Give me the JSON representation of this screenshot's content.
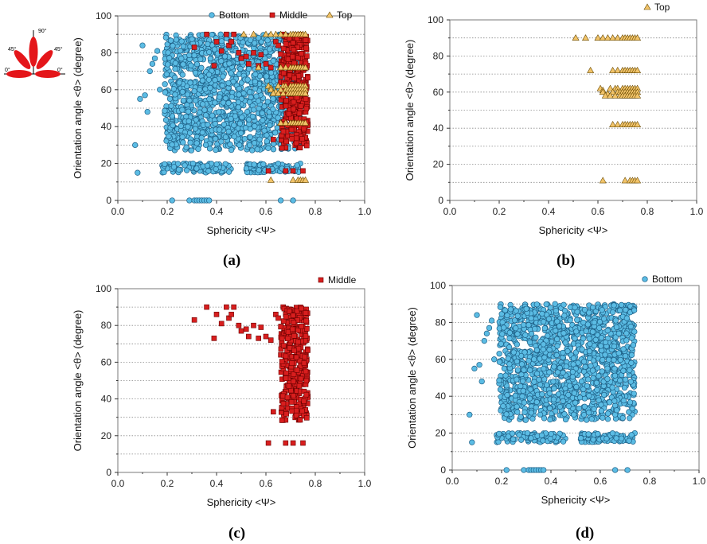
{
  "chart_data": [
    {
      "panel_label": "(a)",
      "type": "scatter",
      "xlabel": "Sphericity <Ψ>",
      "ylabel": "Orientation angle <θ> (degree)",
      "xlim": [
        0.0,
        1.0
      ],
      "ylim": [
        0,
        100
      ],
      "xticks": [
        "0.0",
        "0.2",
        "0.4",
        "0.6",
        "0.8",
        "1.0"
      ],
      "yticks": [
        "0",
        "20",
        "40",
        "60",
        "80",
        "100"
      ],
      "grid": "horizontal dotted",
      "legend_position": "top",
      "series": [
        {
          "name": "Bottom",
          "marker": "circle",
          "color": "#5bbce4"
        },
        {
          "name": "Middle",
          "marker": "square",
          "color": "#d81e1e"
        },
        {
          "name": "Top",
          "marker": "triangle",
          "color": "#f2c46a"
        }
      ],
      "inset": {
        "angle_labels": [
          "90°",
          "45°",
          "45°",
          "0°",
          "0°"
        ]
      }
    },
    {
      "panel_label": "(b)",
      "type": "scatter",
      "xlabel": "Sphericity <Ψ>",
      "ylabel": "Orientation angle <θ> (degree)",
      "xlim": [
        0.0,
        1.0
      ],
      "ylim": [
        0,
        100
      ],
      "xticks": [
        "0.0",
        "0.2",
        "0.4",
        "0.6",
        "0.8",
        "1.0"
      ],
      "yticks": [
        "0",
        "20",
        "40",
        "60",
        "80",
        "100"
      ],
      "grid": "horizontal dotted",
      "legend_position": "top-right",
      "series": [
        {
          "name": "Top",
          "marker": "triangle",
          "color": "#f2c46a",
          "points": [
            [
              0.51,
              90
            ],
            [
              0.55,
              90
            ],
            [
              0.6,
              90
            ],
            [
              0.62,
              90
            ],
            [
              0.64,
              90
            ],
            [
              0.66,
              90
            ],
            [
              0.68,
              90
            ],
            [
              0.7,
              90
            ],
            [
              0.71,
              90
            ],
            [
              0.72,
              90
            ],
            [
              0.73,
              90
            ],
            [
              0.74,
              90
            ],
            [
              0.75,
              90
            ],
            [
              0.76,
              90
            ],
            [
              0.57,
              72
            ],
            [
              0.66,
              72
            ],
            [
              0.68,
              72
            ],
            [
              0.7,
              72
            ],
            [
              0.71,
              72
            ],
            [
              0.72,
              72
            ],
            [
              0.73,
              72
            ],
            [
              0.74,
              72
            ],
            [
              0.75,
              72
            ],
            [
              0.76,
              72
            ],
            [
              0.61,
              62
            ],
            [
              0.62,
              61
            ],
            [
              0.65,
              62
            ],
            [
              0.67,
              62
            ],
            [
              0.68,
              62
            ],
            [
              0.7,
              62
            ],
            [
              0.71,
              62
            ],
            [
              0.72,
              62
            ],
            [
              0.73,
              62
            ],
            [
              0.74,
              62
            ],
            [
              0.75,
              62
            ],
            [
              0.76,
              62
            ],
            [
              0.62,
              60
            ],
            [
              0.64,
              59
            ],
            [
              0.66,
              60
            ],
            [
              0.68,
              60
            ],
            [
              0.69,
              60
            ],
            [
              0.7,
              60
            ],
            [
              0.71,
              60
            ],
            [
              0.72,
              60
            ],
            [
              0.73,
              60
            ],
            [
              0.74,
              60
            ],
            [
              0.75,
              60
            ],
            [
              0.76,
              60
            ],
            [
              0.63,
              58
            ],
            [
              0.65,
              58
            ],
            [
              0.67,
              58
            ],
            [
              0.69,
              58
            ],
            [
              0.7,
              58
            ],
            [
              0.71,
              58
            ],
            [
              0.72,
              58
            ],
            [
              0.73,
              58
            ],
            [
              0.74,
              58
            ],
            [
              0.75,
              58
            ],
            [
              0.76,
              58
            ],
            [
              0.66,
              42
            ],
            [
              0.68,
              42
            ],
            [
              0.7,
              42
            ],
            [
              0.71,
              42
            ],
            [
              0.72,
              42
            ],
            [
              0.73,
              42
            ],
            [
              0.74,
              42
            ],
            [
              0.75,
              42
            ],
            [
              0.76,
              42
            ],
            [
              0.62,
              11
            ],
            [
              0.71,
              11
            ],
            [
              0.73,
              11
            ],
            [
              0.74,
              11
            ],
            [
              0.75,
              11
            ],
            [
              0.76,
              11
            ]
          ]
        }
      ]
    },
    {
      "panel_label": "(c)",
      "type": "scatter",
      "xlabel": "Sphericity <Ψ>",
      "ylabel": "Orientation angle <θ> (degree)",
      "xlim": [
        0.0,
        1.0
      ],
      "ylim": [
        0,
        100
      ],
      "xticks": [
        "0.0",
        "0.2",
        "0.4",
        "0.6",
        "0.8",
        "1.0"
      ],
      "yticks": [
        "0",
        "20",
        "40",
        "60",
        "80",
        "100"
      ],
      "grid": "horizontal dotted",
      "legend_position": "top-right",
      "series": [
        {
          "name": "Middle",
          "marker": "square",
          "color": "#d81e1e",
          "points": [
            [
              0.31,
              83
            ],
            [
              0.36,
              90
            ],
            [
              0.39,
              73
            ],
            [
              0.4,
              86
            ],
            [
              0.42,
              81
            ],
            [
              0.44,
              90
            ],
            [
              0.45,
              84
            ],
            [
              0.46,
              86
            ],
            [
              0.47,
              90
            ],
            [
              0.49,
              80
            ],
            [
              0.5,
              77
            ],
            [
              0.52,
              78
            ],
            [
              0.53,
              74
            ],
            [
              0.55,
              80
            ],
            [
              0.57,
              73
            ],
            [
              0.58,
              79
            ],
            [
              0.6,
              74
            ],
            [
              0.62,
              72
            ],
            [
              0.63,
              33
            ],
            [
              0.61,
              16
            ],
            [
              0.64,
              86
            ],
            [
              0.65,
              84
            ],
            [
              0.66,
              64
            ],
            [
              0.67,
              90
            ],
            [
              0.68,
              16
            ],
            [
              0.71,
              16
            ],
            [
              0.75,
              16
            ]
          ],
          "cluster": {
            "x_range": [
              0.66,
              0.77
            ],
            "y_range": [
              28,
              90
            ],
            "count": 340
          }
        }
      ]
    },
    {
      "panel_label": "(d)",
      "type": "scatter",
      "xlabel": "Sphericity <Ψ>",
      "ylabel": "Orientation angle <θ> (degree)",
      "xlim": [
        0.0,
        1.0
      ],
      "ylim": [
        0,
        100
      ],
      "xticks": [
        "0.0",
        "0.2",
        "0.4",
        "0.6",
        "0.8",
        "1.0"
      ],
      "yticks": [
        "0",
        "20",
        "40",
        "60",
        "80",
        "100"
      ],
      "grid": "horizontal dotted",
      "legend_position": "top-right",
      "series": [
        {
          "name": "Bottom",
          "marker": "circle",
          "color": "#5bbce4",
          "points": [
            [
              0.07,
              30
            ],
            [
              0.08,
              15
            ],
            [
              0.09,
              55
            ],
            [
              0.1,
              84
            ],
            [
              0.11,
              57
            ],
            [
              0.12,
              48
            ],
            [
              0.13,
              70
            ],
            [
              0.14,
              74
            ],
            [
              0.15,
              77
            ],
            [
              0.16,
              81
            ],
            [
              0.17,
              60
            ],
            [
              0.18,
              19
            ],
            [
              0.22,
              0
            ],
            [
              0.29,
              0
            ],
            [
              0.31,
              0
            ],
            [
              0.32,
              0
            ],
            [
              0.33,
              0
            ],
            [
              0.34,
              0
            ],
            [
              0.35,
              0
            ],
            [
              0.36,
              0
            ],
            [
              0.37,
              0
            ],
            [
              0.66,
              0
            ],
            [
              0.71,
              0
            ]
          ],
          "cluster": {
            "x_range": [
              0.19,
              0.74
            ],
            "y_range": [
              27,
              90
            ],
            "count": 1400
          },
          "band": {
            "x_range": [
              0.18,
              0.74
            ],
            "y_range": [
              15,
              20
            ],
            "count": 190
          }
        }
      ]
    }
  ]
}
